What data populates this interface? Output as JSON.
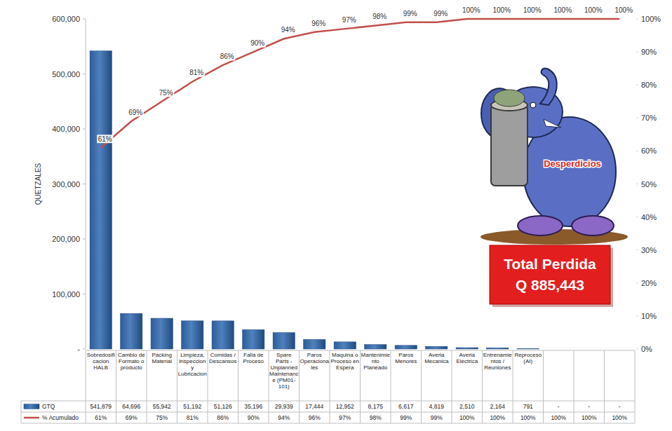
{
  "chart_data": {
    "type": "bar",
    "ylabel": "QUETZALES",
    "categories": [
      "Sobredosificacion HALB",
      "Cambio de Formato o producto",
      "Packing Material",
      "Limpieza, Inspeccion y Lubricacion",
      "Comidas / Descansos",
      "Falla de Proceso",
      "Spare Parts - Unplanned Maintenance (PM01-101)",
      "Paros Operacionales",
      "Maquina o Proceso en Espera",
      "Mantenimiento Planeado",
      "Paros Menores",
      "Averia Mecanica",
      "Averia Electrica",
      "Entrenamientos / Reuniones",
      "Reproceso (AI)",
      null,
      null,
      null
    ],
    "series": [
      {
        "name": "GTQ",
        "type": "bar",
        "color": "#4f81bd",
        "values": [
          541879,
          64696,
          55942,
          51192,
          51126,
          35196,
          29939,
          17444,
          12952,
          8175,
          6617,
          4819,
          2510,
          2164,
          791,
          null,
          null,
          null
        ],
        "value_labels": [
          "541,879",
          "64,696",
          "55,942",
          "51,192",
          "51,126",
          "35,196",
          "29,939",
          "17,444",
          "12,952",
          "8,175",
          "6,617",
          "4,819",
          "2,510",
          "2,164",
          "791",
          "-",
          "-",
          "-"
        ]
      },
      {
        "name": "% Acumulado",
        "type": "line",
        "axis": "y2",
        "color": "#c0504d",
        "line_style": "solid",
        "data_labels": true,
        "values": [
          61,
          69,
          75,
          81,
          86,
          90,
          94,
          96,
          97,
          98,
          99,
          99,
          100,
          100,
          100,
          100,
          100,
          100
        ],
        "value_labels": [
          "61%",
          "69%",
          "75%",
          "81%",
          "86%",
          "90%",
          "94%",
          "96%",
          "97%",
          "98%",
          "99%",
          "99%",
          "100%",
          "100%",
          "100%",
          "100%",
          "100%",
          "100%"
        ]
      }
    ],
    "ylim": [
      0,
      600000
    ],
    "yticks": [
      {
        "value": 0,
        "label": "-"
      },
      {
        "value": 100000,
        "label": "100,000"
      },
      {
        "value": 200000,
        "label": "200,000"
      },
      {
        "value": 300000,
        "label": "300,000"
      },
      {
        "value": 400000,
        "label": "400,000"
      },
      {
        "value": 500000,
        "label": "500,000"
      },
      {
        "value": 600000,
        "label": "600,000"
      }
    ],
    "y2lim": [
      0,
      100
    ],
    "y2ticks": [
      {
        "value": 0,
        "label": "0%"
      },
      {
        "value": 10,
        "label": "10%"
      },
      {
        "value": 20,
        "label": "20%"
      },
      {
        "value": 30,
        "label": "30%"
      },
      {
        "value": 40,
        "label": "40%"
      },
      {
        "value": 50,
        "label": "50%"
      },
      {
        "value": 60,
        "label": "60%"
      },
      {
        "value": 70,
        "label": "70%"
      },
      {
        "value": 80,
        "label": "80%"
      },
      {
        "value": 90,
        "label": "90%"
      },
      {
        "value": 100,
        "label": "100%"
      }
    ],
    "grid": false,
    "legend": "bottom-left",
    "annotations": [
      "Desperdicios",
      "Total Perdida",
      "Q 885,443"
    ]
  }
}
